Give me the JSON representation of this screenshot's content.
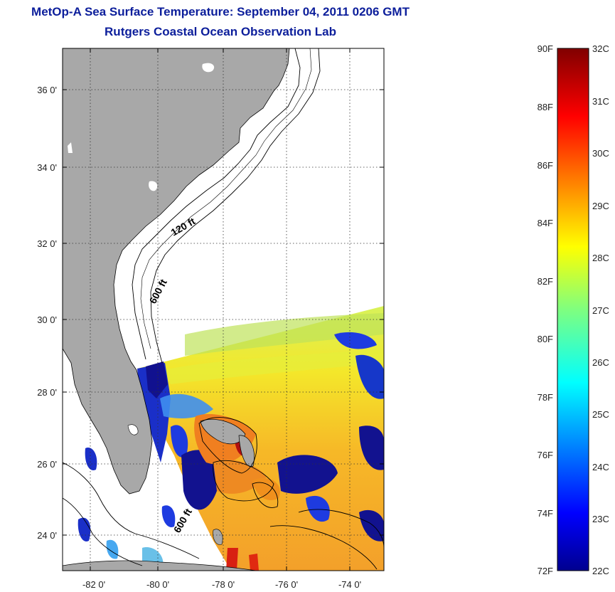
{
  "title": {
    "line1": "MetOp-A Sea Surface Temperature:  September 04, 2011 0206 GMT",
    "line2": "Rutgers Coastal Ocean Observation Lab"
  },
  "map": {
    "lon_range": [
      -83,
      -73
    ],
    "lat_range": [
      23,
      37
    ],
    "lon_ticks": [
      {
        "value": -82,
        "label": "-82 0'"
      },
      {
        "value": -80,
        "label": "-80 0'"
      },
      {
        "value": -78,
        "label": "-78 0'"
      },
      {
        "value": -76,
        "label": "-76 0'"
      },
      {
        "value": -74,
        "label": "-74 0'"
      }
    ],
    "lat_ticks": [
      {
        "value": 24,
        "label": "24 0'"
      },
      {
        "value": 26,
        "label": "26 0'"
      },
      {
        "value": 28,
        "label": "28 0'"
      },
      {
        "value": 30,
        "label": "30 0'"
      },
      {
        "value": 32,
        "label": "32 0'"
      },
      {
        "value": 34,
        "label": "34 0'"
      },
      {
        "value": 36,
        "label": "36 0'"
      }
    ],
    "grid": "dotted",
    "land_color": "#a8a8a8",
    "isobath_labels": {
      "shallow": "120 ft",
      "deep": "600 ft",
      "south": "600 ft"
    }
  },
  "colorbar": {
    "fahrenheit_labels": [
      "90F",
      "88F",
      "86F",
      "84F",
      "82F",
      "80F",
      "78F",
      "76F",
      "74F",
      "72F"
    ],
    "celsius_labels": [
      "32C",
      "31C",
      "30C",
      "29C",
      "28C",
      "27C",
      "26C",
      "25C",
      "24C",
      "23C",
      "22C"
    ],
    "celsius_range": [
      22,
      32
    ],
    "colormap": "jet"
  }
}
